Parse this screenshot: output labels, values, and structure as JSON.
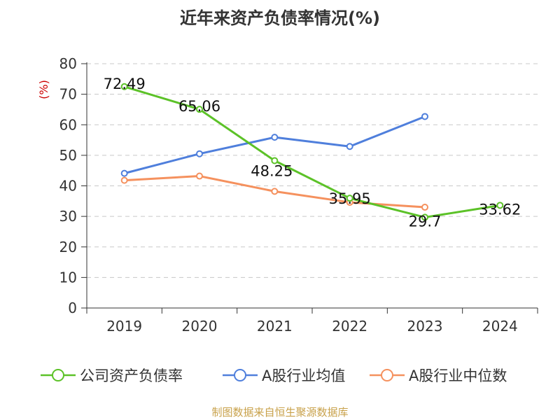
{
  "title": "近年来资产负债率情况(%)",
  "source": "制图数据来自恒生聚源数据库",
  "chart_data": {
    "type": "line",
    "title": "近年来资产负债率情况(%)",
    "ylabel": "(%)",
    "xlabel": "",
    "categories": [
      "2019",
      "2020",
      "2021",
      "2022",
      "2023",
      "2024"
    ],
    "ylim": [
      0,
      80
    ],
    "yticks": [
      0,
      10,
      20,
      30,
      40,
      50,
      60,
      70,
      80
    ],
    "grid": true,
    "legend_position": "bottom",
    "series": [
      {
        "name": "公司资产负债率",
        "color": "#5cc228",
        "values": [
          72.49,
          65.06,
          48.25,
          35.95,
          29.7,
          33.62
        ],
        "labels": [
          "72.49",
          "65.06",
          "48.25",
          "35.95",
          "29.7",
          "33.62"
        ]
      },
      {
        "name": "A股行业均值",
        "color": "#4f7fdc",
        "values": [
          44.1,
          50.5,
          55.9,
          52.9,
          62.7,
          null
        ]
      },
      {
        "name": "A股行业中位数",
        "color": "#f5915e",
        "values": [
          41.8,
          43.2,
          38.2,
          34.6,
          33.0,
          null
        ]
      }
    ]
  }
}
